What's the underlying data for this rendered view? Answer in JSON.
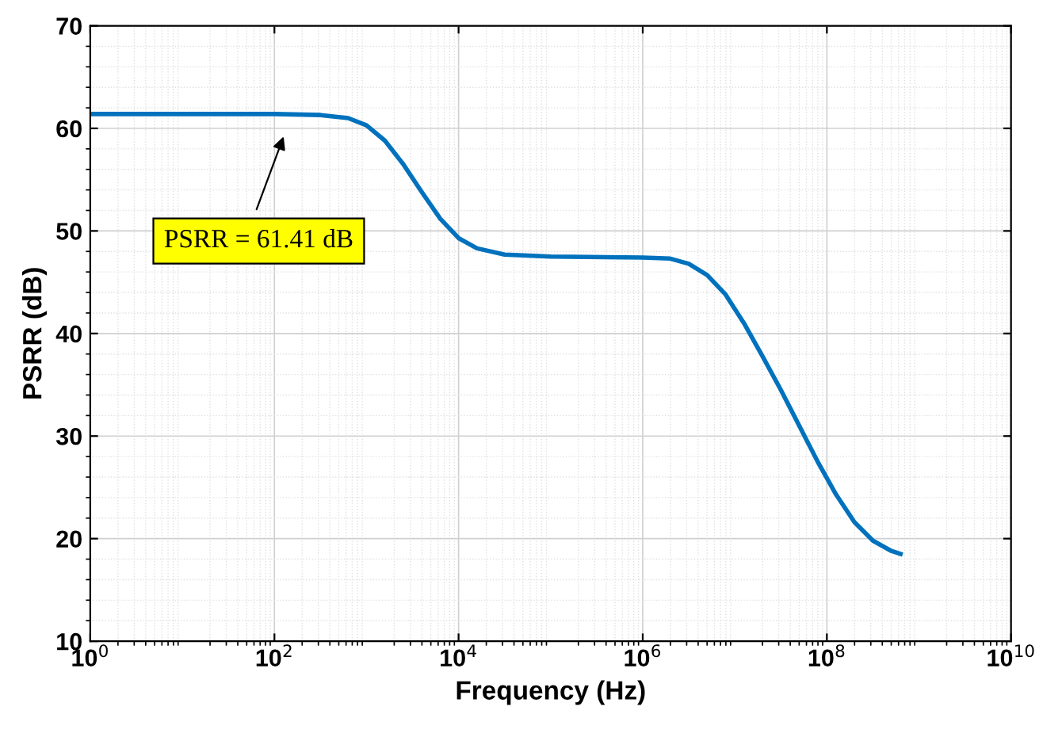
{
  "chart_data": {
    "type": "line",
    "xlabel": "Frequency (Hz)",
    "ylabel": "PSRR (dB)",
    "log": "x",
    "grid": true,
    "marker": "none",
    "line_style": "solid",
    "xlim": [
      1,
      10000000000
    ],
    "ylim": [
      10,
      70
    ],
    "xticks": [
      {
        "value": 1,
        "label": "10$^{0}$"
      },
      {
        "value": 100,
        "label": "10$^{2}$"
      },
      {
        "value": 10000,
        "label": "10$^{4}$"
      },
      {
        "value": 1000000,
        "label": "10$^{6}$"
      },
      {
        "value": 100000000,
        "label": "10$^{8}$"
      },
      {
        "value": 10000000000,
        "label": "10$^{10}$"
      }
    ],
    "yticks": [
      10,
      20,
      30,
      40,
      50,
      60,
      70
    ],
    "annotations": [
      "PSRR = 61.41 dB"
    ],
    "series": [
      {
        "color": "#0072bd",
        "x": [
          1,
          10,
          100,
          316,
          631,
          1000,
          1585,
          2512,
          3981,
          6310,
          10000,
          15849,
          31623,
          100000,
          1000000,
          1995262,
          3162278,
          5011872,
          7943282,
          12589254,
          19952623,
          31622777,
          50118723,
          79432823,
          125892541,
          199526231,
          316227766,
          501187234,
          630957344
        ],
        "values": [
          61.4,
          61.4,
          61.4,
          61.3,
          61.0,
          60.3,
          58.8,
          56.5,
          53.8,
          51.2,
          49.3,
          48.3,
          47.7,
          47.5,
          47.4,
          47.3,
          46.8,
          45.7,
          43.8,
          41.0,
          37.8,
          34.5,
          31.0,
          27.5,
          24.3,
          21.6,
          19.8,
          18.8,
          18.5
        ]
      }
    ]
  }
}
